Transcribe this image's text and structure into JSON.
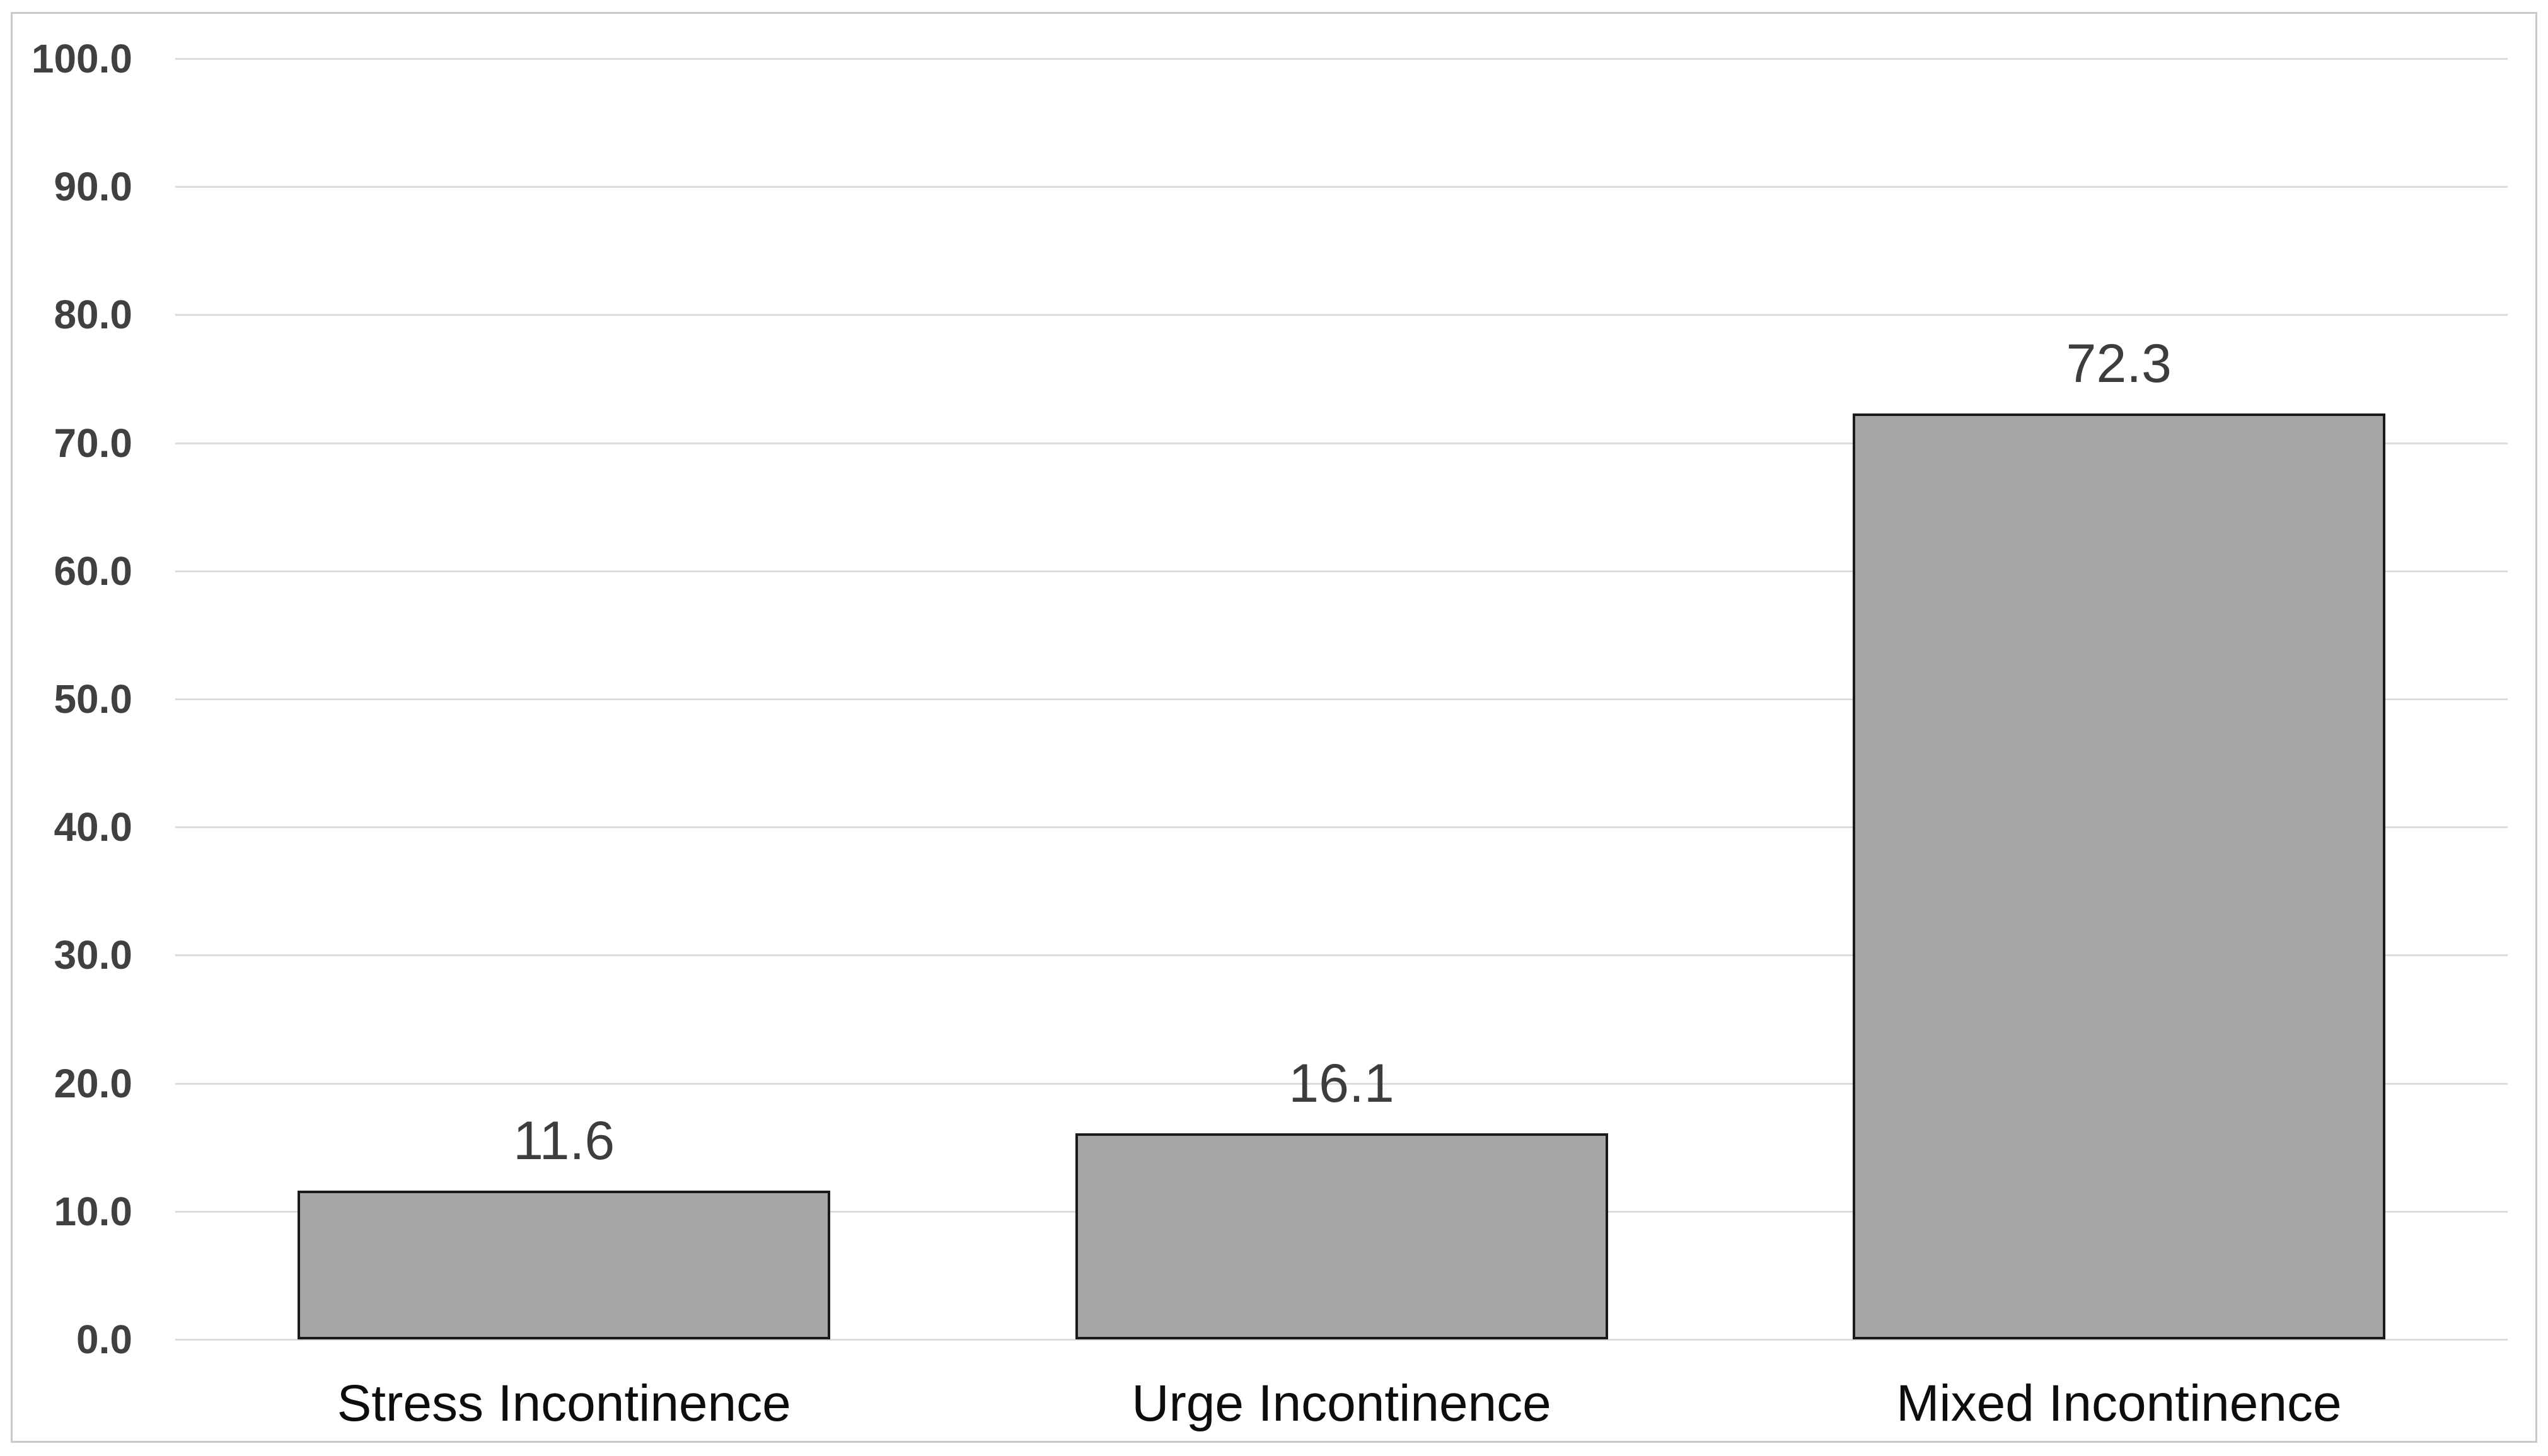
{
  "chart_data": {
    "type": "bar",
    "title": "",
    "xlabel": "",
    "ylabel": "",
    "categories": [
      "Stress Incontinence",
      "Urge Incontinence",
      "Mixed Incontinence"
    ],
    "values": [
      11.6,
      16.1,
      72.3
    ],
    "data_labels": [
      "11.6",
      "16.1",
      "72.3"
    ],
    "ylim": [
      0,
      100
    ],
    "ytick_step": 10,
    "ytick_labels": [
      "100.0",
      "90.0",
      "80.0",
      "70.0",
      "60.0",
      "50.0",
      "40.0",
      "30.0",
      "20.0",
      "10.0",
      "0.0"
    ],
    "grid": true,
    "legend": false,
    "colors": {
      "bar_fill": "#A6A6A6",
      "bar_border": "#1A1A1A",
      "gridline": "#DCDCDC",
      "tick_label": "#404040",
      "data_label": "#3D3D3D",
      "category_label": "#0D0D0D",
      "canvas_frame": "#C9C9C9",
      "background": "#FFFFFF"
    }
  }
}
